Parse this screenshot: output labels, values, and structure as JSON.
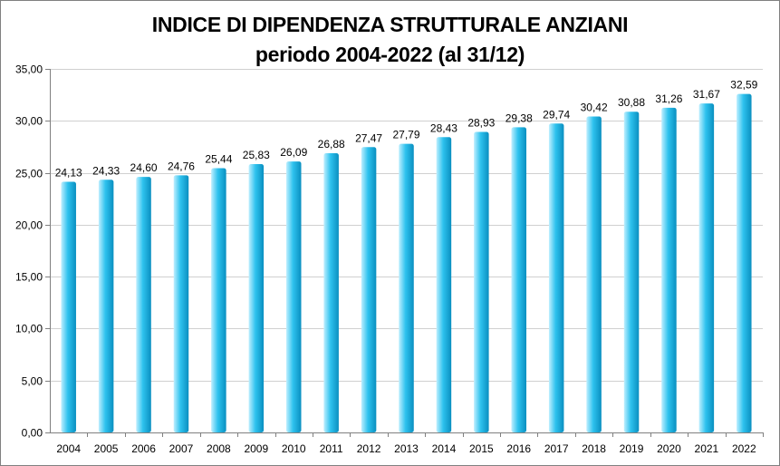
{
  "chart_data": {
    "type": "bar",
    "title": "INDICE DI DIPENDENZA STRUTTURALE ANZIANI",
    "subtitle": "periodo 2004-2022 (al 31/12)",
    "xlabel": "",
    "ylabel": "",
    "categories": [
      "2004",
      "2005",
      "2006",
      "2007",
      "2008",
      "2009",
      "2010",
      "2011",
      "2012",
      "2013",
      "2014",
      "2015",
      "2016",
      "2017",
      "2018",
      "2019",
      "2020",
      "2021",
      "2022"
    ],
    "values": [
      24.13,
      24.33,
      24.6,
      24.76,
      25.44,
      25.83,
      26.09,
      26.88,
      27.47,
      27.79,
      28.43,
      28.93,
      29.38,
      29.74,
      30.42,
      30.88,
      31.26,
      31.67,
      32.59
    ],
    "value_labels": [
      "24,13",
      "24,33",
      "24,60",
      "24,76",
      "25,44",
      "25,83",
      "26,09",
      "26,88",
      "27,47",
      "27,79",
      "28,43",
      "28,93",
      "29,38",
      "29,74",
      "30,42",
      "30,88",
      "31,26",
      "31,67",
      "32,59"
    ],
    "ylim": [
      0,
      35
    ],
    "yticks": [
      0,
      5,
      10,
      15,
      20,
      25,
      30,
      35
    ],
    "ytick_labels": [
      "0,00",
      "5,00",
      "10,00",
      "15,00",
      "20,00",
      "25,00",
      "30,00",
      "35,00"
    ],
    "grid": true,
    "legend": "none",
    "colors": {
      "bar_light": "#bfefff",
      "bar_mid": "#2ec2ee",
      "bar_dark": "#0a8fc0",
      "grid": "#d0d0d0",
      "axis": "#808080"
    }
  }
}
